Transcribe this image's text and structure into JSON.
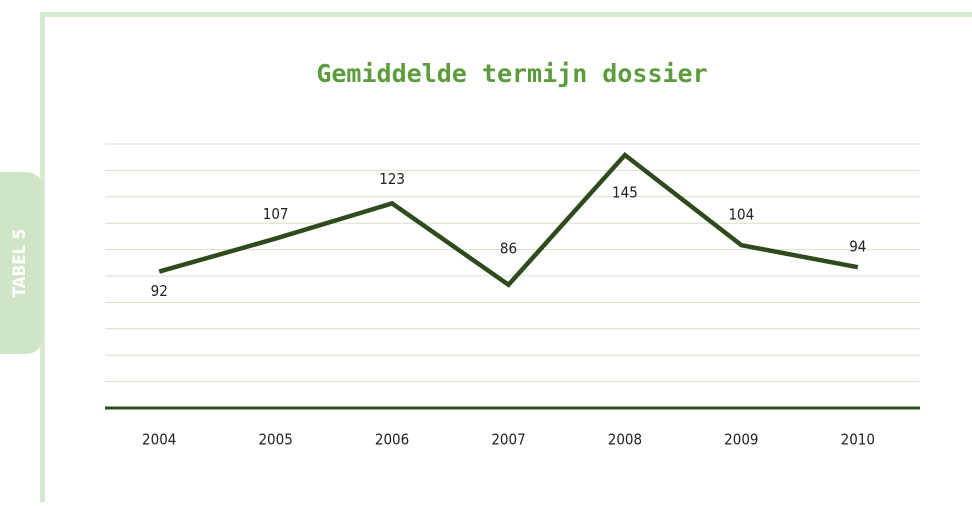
{
  "side_tab": "TABEL 5",
  "chart_data": {
    "type": "line",
    "title": "Gemiddelde termijn dossier",
    "categories": [
      "2004",
      "2005",
      "2006",
      "2007",
      "2008",
      "2009",
      "2010"
    ],
    "series": [
      {
        "name": "Gemiddelde termijn dossier",
        "color": "#2f4a1c",
        "values": [
          92,
          107,
          123,
          86,
          145,
          104,
          94
        ]
      }
    ],
    "ylim": [
      30,
      150
    ],
    "yticks": [
      42,
      54,
      66,
      78,
      90,
      102,
      114,
      126,
      138,
      150
    ],
    "grid": true
  }
}
